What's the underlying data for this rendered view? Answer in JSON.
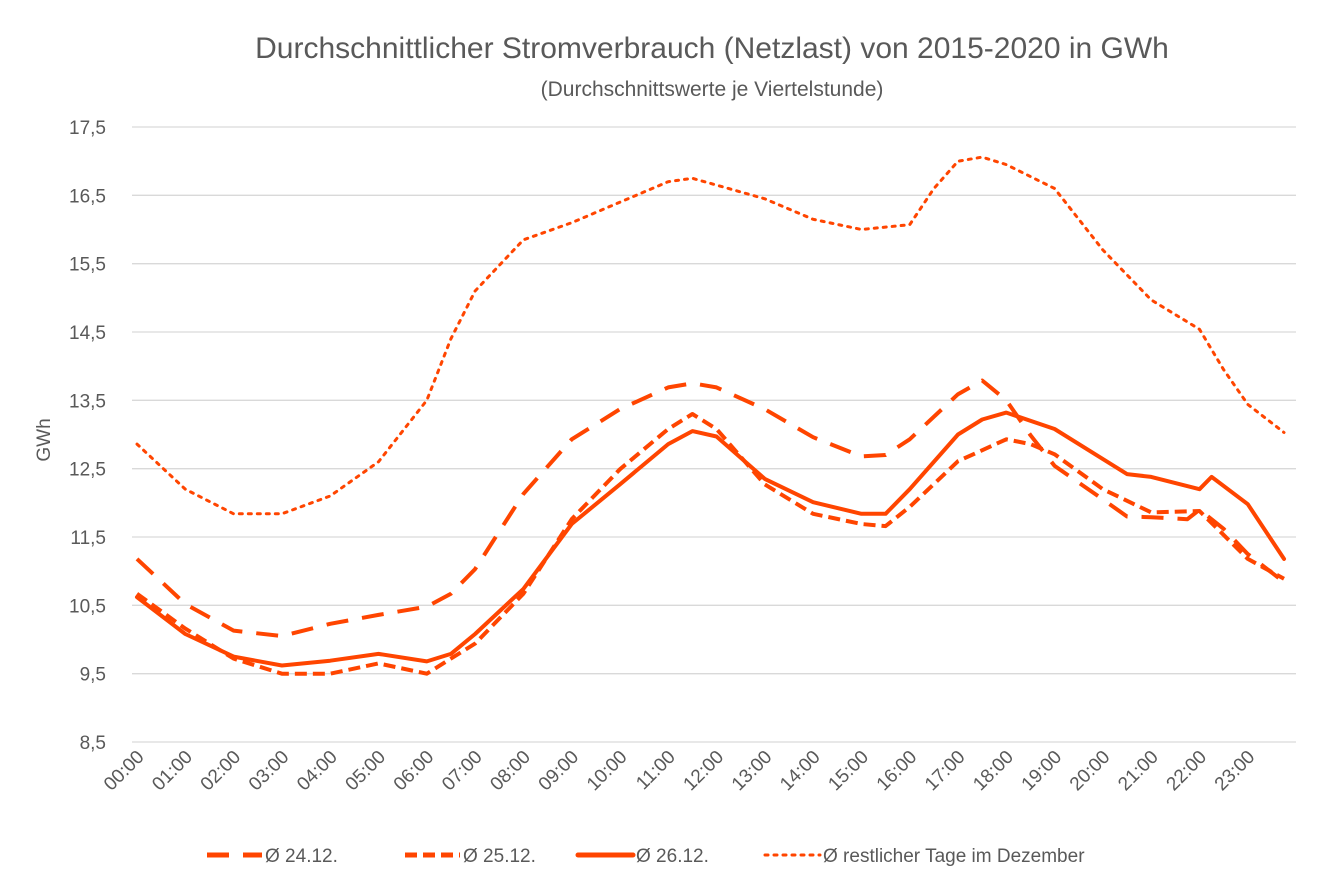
{
  "chart_data": {
    "type": "line",
    "title": "Durchschnittlicher Stromverbrauch (Netzlast) von 2015-2020 in GWh",
    "subtitle": "(Durchschnittswerte je Viertelstunde)",
    "xlabel": "",
    "ylabel": "GWh",
    "ylim": [
      8.5,
      17.5
    ],
    "xlim_hours": [
      0,
      23.75
    ],
    "y_ticks": [
      "8,5",
      "9,5",
      "10,5",
      "11,5",
      "12,5",
      "13,5",
      "14,5",
      "15,5",
      "16,5",
      "17,5"
    ],
    "y_tick_values": [
      8.5,
      9.5,
      10.5,
      11.5,
      12.5,
      13.5,
      14.5,
      15.5,
      16.5,
      17.5
    ],
    "x_ticks": [
      "00:00",
      "01:00",
      "02:00",
      "03:00",
      "04:00",
      "05:00",
      "06:00",
      "07:00",
      "08:00",
      "09:00",
      "10:00",
      "11:00",
      "12:00",
      "13:00",
      "14:00",
      "15:00",
      "16:00",
      "17:00",
      "18:00",
      "19:00",
      "20:00",
      "21:00",
      "22:00",
      "23:00"
    ],
    "grid": true,
    "legend_position": "bottom",
    "color": "#FF4500",
    "series": [
      {
        "name": "Ø 24.12.",
        "style": "long-dash",
        "x": [
          0,
          1,
          2,
          3,
          4,
          5,
          6,
          6.5,
          7,
          8,
          9,
          10,
          11,
          11.5,
          12,
          13,
          14,
          15,
          15.5,
          16,
          17,
          17.5,
          18,
          18.5,
          19,
          20,
          20.5,
          21,
          21.75,
          22,
          22.5,
          23,
          23.75
        ],
        "y": [
          11.18,
          10.52,
          10.13,
          10.05,
          10.23,
          10.36,
          10.48,
          10.67,
          11.03,
          12.13,
          12.93,
          13.37,
          13.69,
          13.75,
          13.69,
          13.37,
          12.96,
          12.68,
          12.7,
          12.93,
          13.59,
          13.79,
          13.5,
          12.99,
          12.54,
          12.05,
          11.8,
          11.79,
          11.76,
          11.9,
          11.62,
          11.25,
          10.84
        ]
      },
      {
        "name": "Ø 25.12.",
        "style": "short-dash",
        "x": [
          0,
          1,
          2,
          3,
          4,
          5,
          6,
          6.5,
          7,
          8,
          9,
          10,
          11,
          11.5,
          12,
          13,
          14,
          15,
          15.5,
          16,
          17,
          18,
          18.5,
          19,
          20,
          21,
          22,
          23,
          23.75
        ],
        "y": [
          10.67,
          10.16,
          9.72,
          9.5,
          9.5,
          9.65,
          9.5,
          9.72,
          9.94,
          10.67,
          11.76,
          12.49,
          13.08,
          13.3,
          13.08,
          12.27,
          11.84,
          11.69,
          11.66,
          11.94,
          12.61,
          12.93,
          12.86,
          12.71,
          12.2,
          11.86,
          11.88,
          11.18,
          10.89
        ]
      },
      {
        "name": "Ø 26.12.",
        "style": "solid",
        "x": [
          0,
          1,
          2,
          3,
          4,
          5,
          6,
          6.5,
          7,
          8,
          9,
          10,
          11,
          11.5,
          12,
          13,
          14,
          15,
          15.5,
          16,
          17,
          17.5,
          18,
          19,
          20,
          20.5,
          21,
          22,
          22.25,
          23,
          23.75
        ],
        "y": [
          10.62,
          10.08,
          9.75,
          9.62,
          9.69,
          9.79,
          9.68,
          9.79,
          10.08,
          10.74,
          11.69,
          12.27,
          12.86,
          13.05,
          12.97,
          12.35,
          12.01,
          11.84,
          11.84,
          12.2,
          13.0,
          13.22,
          13.32,
          13.08,
          12.64,
          12.42,
          12.38,
          12.2,
          12.38,
          11.98,
          11.18
        ]
      },
      {
        "name": "Ø restlicher Tage im Dezember",
        "style": "dotted",
        "x": [
          0,
          1,
          2,
          3,
          4,
          5,
          6,
          6.5,
          7,
          8,
          9,
          10,
          11,
          11.5,
          12,
          13,
          14,
          15,
          16,
          16.5,
          17,
          17.5,
          18,
          19,
          20,
          21,
          22,
          22.5,
          23,
          23.75
        ],
        "y": [
          12.86,
          12.2,
          11.84,
          11.84,
          12.1,
          12.6,
          13.5,
          14.4,
          15.1,
          15.85,
          16.1,
          16.4,
          16.7,
          16.75,
          16.65,
          16.45,
          16.15,
          16.0,
          16.07,
          16.6,
          17.0,
          17.06,
          16.95,
          16.6,
          15.7,
          14.97,
          14.54,
          13.95,
          13.44,
          13.03
        ]
      }
    ]
  }
}
